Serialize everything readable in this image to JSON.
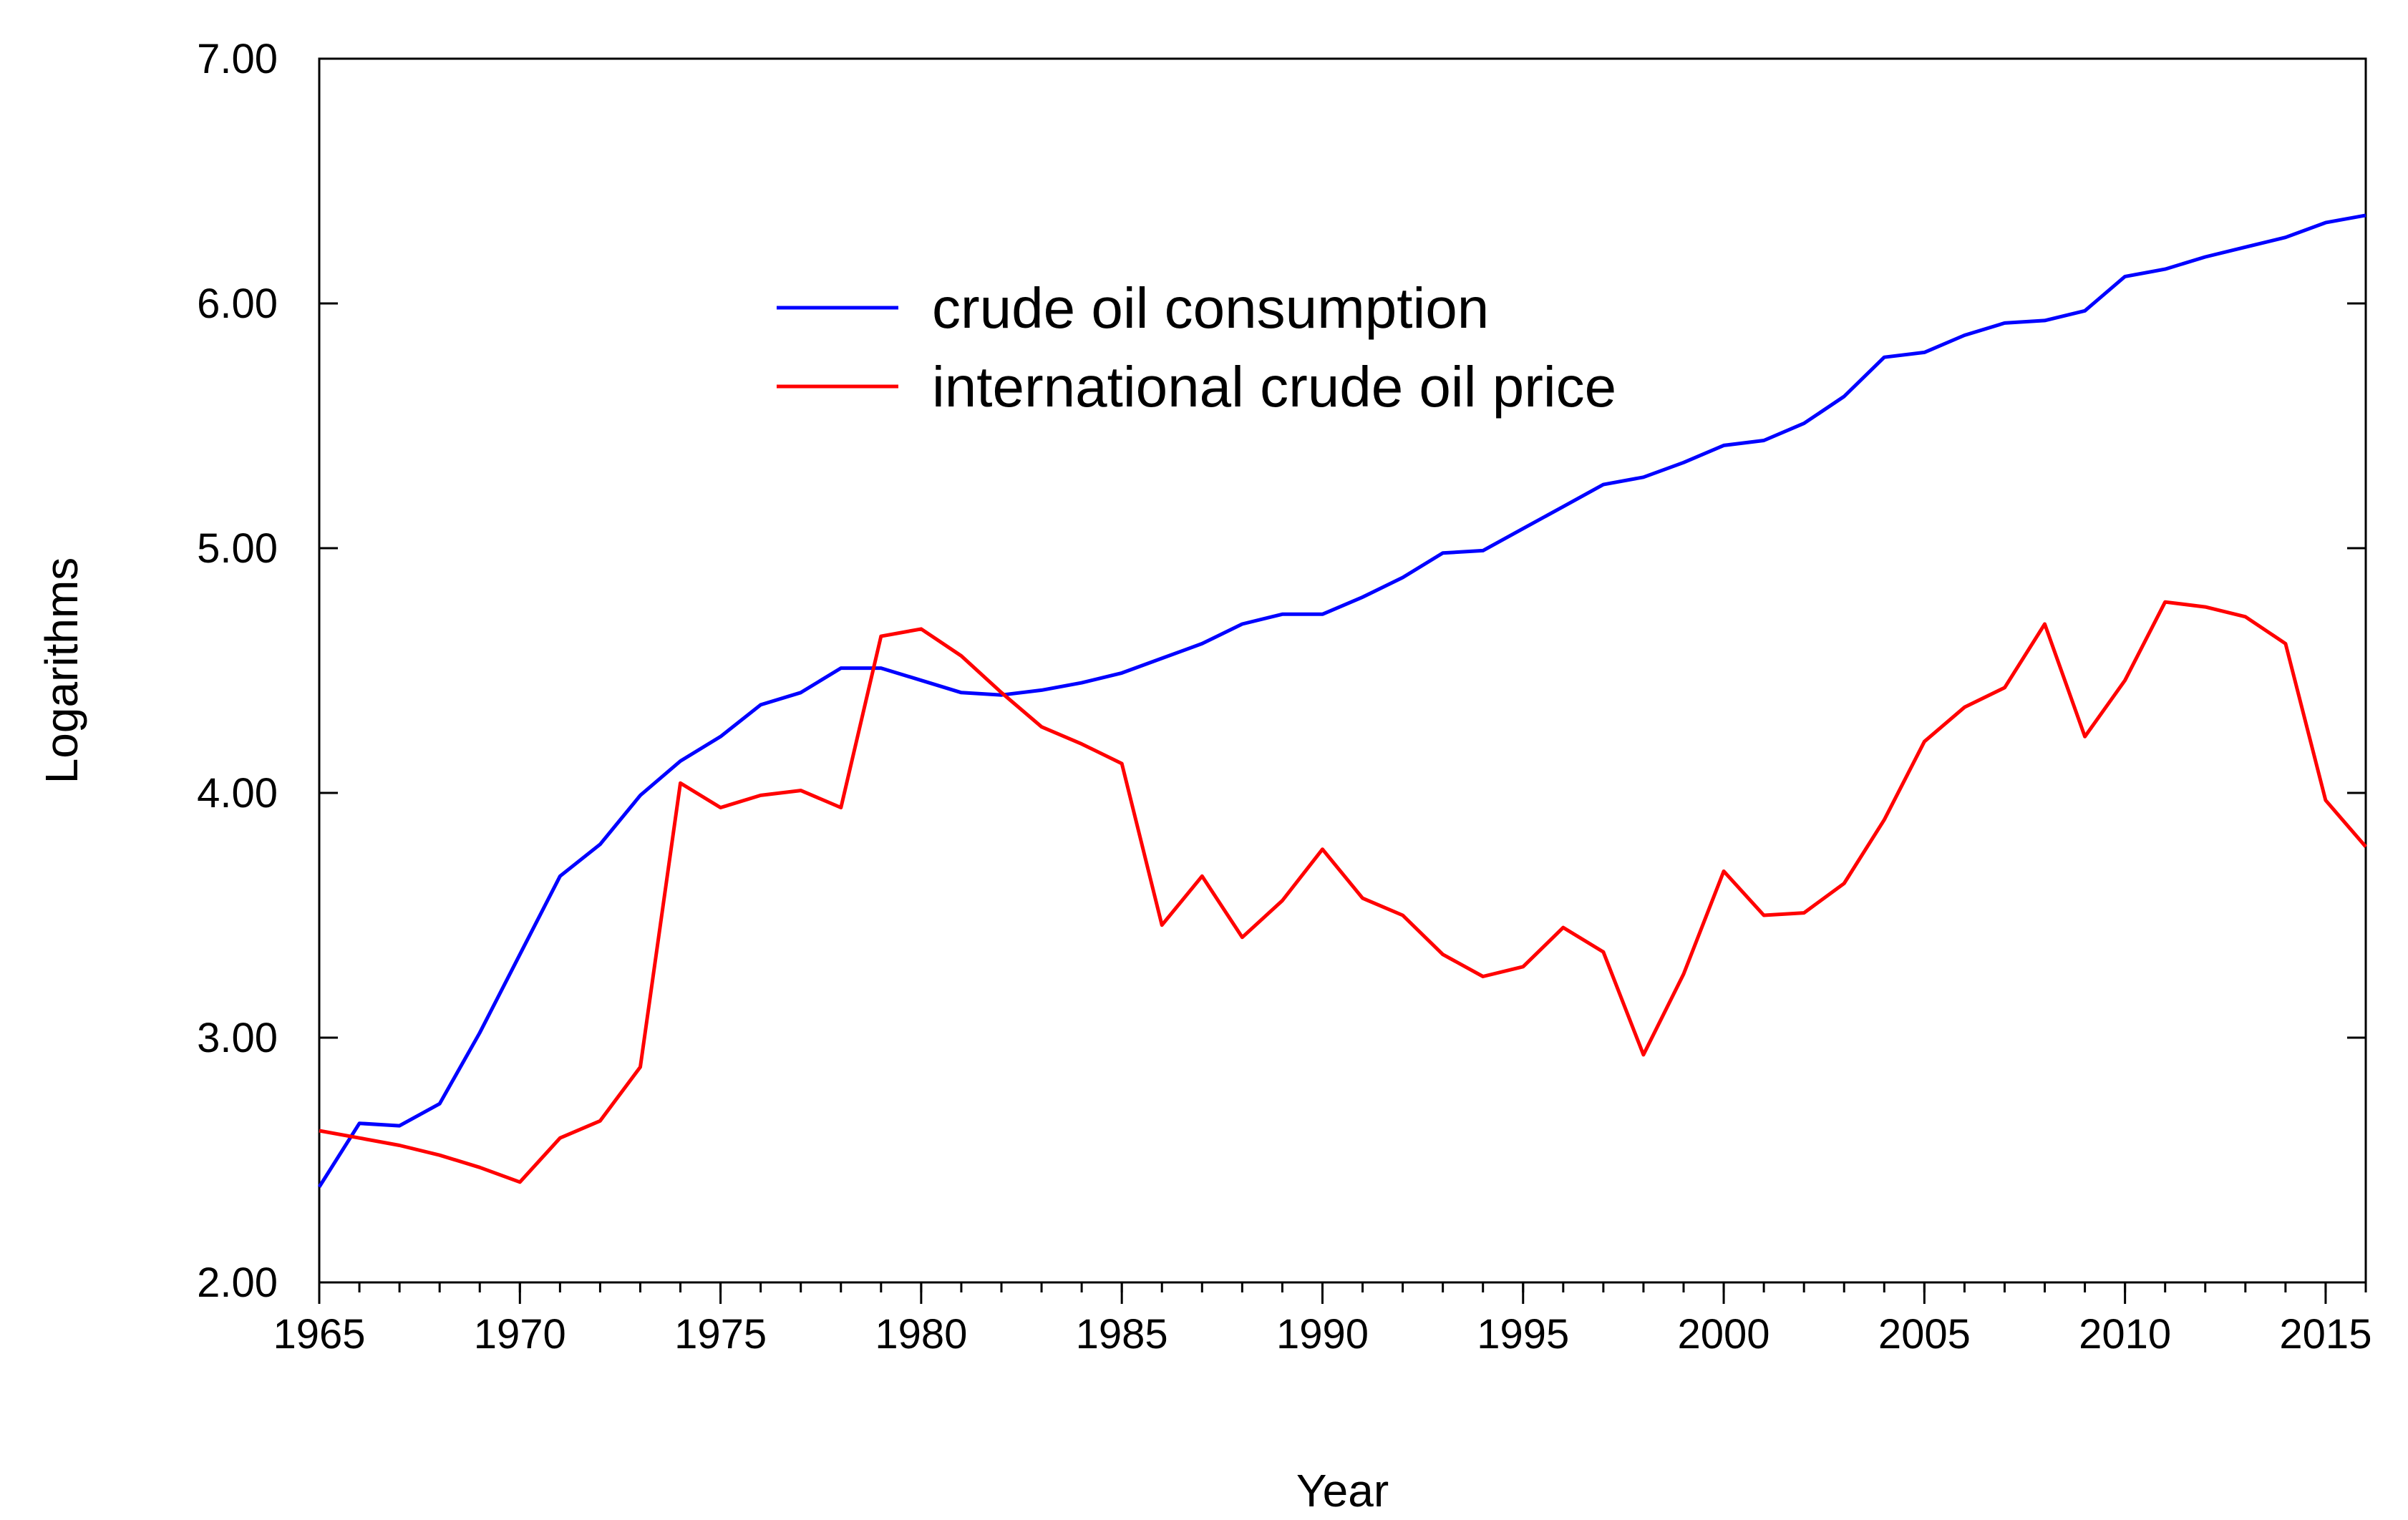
{
  "chart_data": {
    "type": "line",
    "title": "",
    "xlabel": "Year",
    "ylabel": "Logarithms",
    "xlim": [
      1965,
      2016
    ],
    "ylim": [
      2.0,
      7.0
    ],
    "x_ticks": [
      1965,
      1970,
      1975,
      1980,
      1985,
      1990,
      1995,
      2000,
      2005,
      2010,
      2015
    ],
    "x_tick_labels": [
      "1965",
      "1970",
      "1975",
      "1980",
      "1985",
      "1990",
      "1995",
      "2000",
      "2005",
      "2010",
      "2015"
    ],
    "y_ticks": [
      2.0,
      3.0,
      4.0,
      5.0,
      6.0,
      7.0
    ],
    "y_tick_labels": [
      "2.00",
      "3.00",
      "4.00",
      "5.00",
      "6.00",
      "7.00"
    ],
    "grid": false,
    "legend_position": "top-center",
    "x": [
      1965,
      1966,
      1967,
      1968,
      1969,
      1970,
      1971,
      1972,
      1973,
      1974,
      1975,
      1976,
      1977,
      1978,
      1979,
      1980,
      1981,
      1982,
      1983,
      1984,
      1985,
      1986,
      1987,
      1988,
      1989,
      1990,
      1991,
      1992,
      1993,
      1994,
      1995,
      1996,
      1997,
      1998,
      1999,
      2000,
      2001,
      2002,
      2003,
      2004,
      2005,
      2006,
      2007,
      2008,
      2009,
      2010,
      2011,
      2012,
      2013,
      2014,
      2015,
      2016
    ],
    "series": [
      {
        "name": "crude oil consumption",
        "color": "#0000ff",
        "values": [
          2.39,
          2.65,
          2.64,
          2.73,
          3.02,
          3.34,
          3.66,
          3.79,
          3.99,
          4.13,
          4.23,
          4.36,
          4.41,
          4.51,
          4.51,
          4.46,
          4.41,
          4.4,
          4.42,
          4.45,
          4.49,
          4.55,
          4.61,
          4.69,
          4.73,
          4.73,
          4.8,
          4.88,
          4.98,
          4.99,
          5.08,
          5.17,
          5.26,
          5.29,
          5.35,
          5.42,
          5.44,
          5.51,
          5.62,
          5.78,
          5.8,
          5.87,
          5.92,
          5.93,
          5.97,
          6.11,
          6.14,
          6.19,
          6.23,
          6.27,
          6.33,
          6.36
        ]
      },
      {
        "name": "international crude oil price",
        "color": "#ff0000",
        "values": [
          2.62,
          2.59,
          2.56,
          2.52,
          2.47,
          2.41,
          2.59,
          2.66,
          2.88,
          4.04,
          3.94,
          3.99,
          4.01,
          3.94,
          4.64,
          4.67,
          4.56,
          4.41,
          4.27,
          4.2,
          4.12,
          3.46,
          3.66,
          3.41,
          3.56,
          3.77,
          3.57,
          3.5,
          3.34,
          3.25,
          3.29,
          3.45,
          3.35,
          2.93,
          3.26,
          3.68,
          3.5,
          3.51,
          3.63,
          3.89,
          4.21,
          4.35,
          4.43,
          4.69,
          4.23,
          4.46,
          4.78,
          4.76,
          4.72,
          4.61,
          3.97,
          3.78
        ]
      }
    ]
  }
}
